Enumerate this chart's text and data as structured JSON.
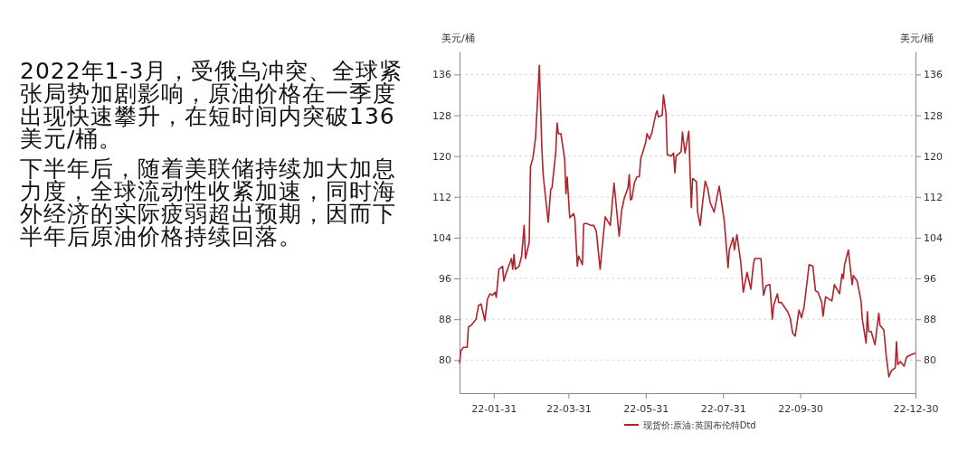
{
  "chart_data": {
    "type": "line",
    "annotations": [
      "2022年1-3月，受俄乌冲突、全球紧张局势加剧影响，原油价格在一季度出现快速攀升，在短时间内突破136美元/桶。",
      "下半年后，随着美联储持续加大加息力度，全球流动性收紧加速，同时海外经济的实际疲弱超出预期，因而下半年后原油价格持续回落。"
    ],
    "ylabel": "美元/桶",
    "y2label": "美元/桶",
    "xlim": [
      "2022-01-04",
      "2022-12-30"
    ],
    "xticks": [
      {
        "value": "2022-01-31",
        "label": "22-01-31"
      },
      {
        "value": "2022-03-31",
        "label": "22-03-31"
      },
      {
        "value": "2022-05-31",
        "label": "22-05-31"
      },
      {
        "value": "2022-07-31",
        "label": "22-07-31"
      },
      {
        "value": "2022-09-30",
        "label": "22-09-30"
      },
      {
        "value": "2022-12-30",
        "label": "22-12-30"
      }
    ],
    "ylim": [
      73.5,
      140.5
    ],
    "yticks": [
      80,
      88,
      96,
      104,
      112,
      120,
      128,
      136
    ],
    "y2lim": [
      73.5,
      140.5
    ],
    "y2ticks": [
      80,
      88,
      96,
      104,
      112,
      120,
      128,
      136
    ],
    "grid": "y",
    "legend": "bottom",
    "marker": "none",
    "line_style": "solid",
    "series": [
      {
        "name": "现货价:原油:英国布伦特Dtd",
        "color": "#b0232a",
        "x": [
          "2022-01-04",
          "2022-01-05",
          "2022-01-07",
          "2022-01-10",
          "2022-01-11",
          "2022-01-13",
          "2022-01-17",
          "2022-01-19",
          "2022-01-21",
          "2022-01-24",
          "2022-01-26",
          "2022-01-28",
          "2022-01-30",
          "2022-02-01",
          "2022-02-02",
          "2022-02-04",
          "2022-02-07",
          "2022-02-08",
          "2022-02-10",
          "2022-02-14",
          "2022-02-15",
          "2022-02-16",
          "2022-02-17",
          "2022-02-20",
          "2022-02-22",
          "2022-02-24",
          "2022-02-25",
          "2022-02-28",
          "2022-03-01",
          "2022-03-03",
          "2022-03-05",
          "2022-03-08",
          "2022-03-10",
          "2022-03-11",
          "2022-03-15",
          "2022-03-17",
          "2022-03-18",
          "2022-03-21",
          "2022-03-22",
          "2022-03-23",
          "2022-03-25",
          "2022-03-28",
          "2022-03-29",
          "2022-03-30",
          "2022-04-01",
          "2022-04-04",
          "2022-04-05",
          "2022-04-07",
          "2022-04-08",
          "2022-04-11",
          "2022-04-12",
          "2022-04-14",
          "2022-04-18",
          "2022-04-20",
          "2022-04-22",
          "2022-04-25",
          "2022-04-27",
          "2022-04-29",
          "2022-05-03",
          "2022-05-06",
          "2022-05-10",
          "2022-05-12",
          "2022-05-14",
          "2022-05-17",
          "2022-05-18",
          "2022-05-19",
          "2022-05-20",
          "2022-05-22",
          "2022-05-24",
          "2022-05-26",
          "2022-05-27",
          "2022-05-31",
          "2022-06-01",
          "2022-06-03",
          "2022-06-05",
          "2022-06-08",
          "2022-06-09",
          "2022-06-10",
          "2022-06-13",
          "2022-06-14",
          "2022-06-16",
          "2022-06-17",
          "2022-06-20",
          "2022-06-22",
          "2022-06-23",
          "2022-06-24",
          "2022-06-28",
          "2022-06-29",
          "2022-07-01",
          "2022-07-04",
          "2022-07-06",
          "2022-07-07",
          "2022-07-10",
          "2022-07-11",
          "2022-07-13",
          "2022-07-15",
          "2022-07-17",
          "2022-07-19",
          "2022-07-21",
          "2022-07-24",
          "2022-07-28",
          "2022-08-01",
          "2022-08-04",
          "2022-08-05",
          "2022-08-08",
          "2022-08-09",
          "2022-08-11",
          "2022-08-14",
          "2022-08-16",
          "2022-08-19",
          "2022-08-22",
          "2022-08-24",
          "2022-08-25",
          "2022-08-30",
          "2022-09-01",
          "2022-09-03",
          "2022-09-06",
          "2022-09-08",
          "2022-09-09",
          "2022-09-12",
          "2022-09-13",
          "2022-09-15",
          "2022-09-20",
          "2022-09-22",
          "2022-09-24",
          "2022-09-26",
          "2022-09-29",
          "2022-10-01",
          "2022-10-03",
          "2022-10-05",
          "2022-10-07",
          "2022-10-10",
          "2022-10-12",
          "2022-10-14",
          "2022-10-17",
          "2022-10-18",
          "2022-10-20",
          "2022-10-25",
          "2022-10-27",
          "2022-10-31",
          "2022-11-02",
          "2022-11-03",
          "2022-11-04",
          "2022-11-07",
          "2022-11-10",
          "2022-11-11",
          "2022-11-14",
          "2022-11-17",
          "2022-11-18",
          "2022-11-21",
          "2022-11-22",
          "2022-11-23",
          "2022-11-25",
          "2022-11-28",
          "2022-12-01",
          "2022-12-02",
          "2022-12-05",
          "2022-12-07",
          "2022-12-09",
          "2022-12-11",
          "2022-12-14",
          "2022-12-15",
          "2022-12-16",
          "2022-12-18",
          "2022-12-21",
          "2022-12-23",
          "2022-12-26",
          "2022-12-29",
          "2022-12-30"
        ],
        "values": [
          79.4,
          81.8,
          82.5,
          82.5,
          86.5,
          86.8,
          88.0,
          90.7,
          91.0,
          87.7,
          91.9,
          93.0,
          92.7,
          93.3,
          92.3,
          97.8,
          98.4,
          95.5,
          97.2,
          99.9,
          97.8,
          100.7,
          97.8,
          98.4,
          100.4,
          106.4,
          99.9,
          103.1,
          117.9,
          119.7,
          123.6,
          137.8,
          121.5,
          116.4,
          107.0,
          113.5,
          113.8,
          120.9,
          126.5,
          124.4,
          124.4,
          119.4,
          112.6,
          115.9,
          107.9,
          108.7,
          107.9,
          98.4,
          100.4,
          98.7,
          106.7,
          106.8,
          106.4,
          106.4,
          105.2,
          97.8,
          103.1,
          108.1,
          106.4,
          114.7,
          104.3,
          109.3,
          111.7,
          113.8,
          116.4,
          111.4,
          111.6,
          114.7,
          115.9,
          116.0,
          119.4,
          122.7,
          124.4,
          123.3,
          124.7,
          128.3,
          128.9,
          127.7,
          128.0,
          132.0,
          128.3,
          120.3,
          120.0,
          120.6,
          116.7,
          120.0,
          120.9,
          124.7,
          120.6,
          124.9,
          109.9,
          115.6,
          115.0,
          109.0,
          106.4,
          111.1,
          115.1,
          113.5,
          110.8,
          109.0,
          114.1,
          107.3,
          98.1,
          101.6,
          104.0,
          101.6,
          104.6,
          99.3,
          93.3,
          97.2,
          93.9,
          98.7,
          99.9,
          99.9,
          92.7,
          94.6,
          94.8,
          88.0,
          90.7,
          93.0,
          91.3,
          91.3,
          89.5,
          88.3,
          85.3,
          84.7,
          89.8,
          88.3,
          90.4,
          94.5,
          98.7,
          98.4,
          93.6,
          93.3,
          91.3,
          88.6,
          92.4,
          91.6,
          94.8,
          93.0,
          96.9,
          96.0,
          98.7,
          101.6,
          94.8,
          96.6,
          95.4,
          91.6,
          88.0,
          83.3,
          89.5,
          85.6,
          85.6,
          83.0,
          89.2,
          86.8,
          85.9,
          80.6,
          76.7,
          77.9,
          78.5,
          83.6,
          79.1,
          79.7,
          78.8,
          80.6,
          81.0,
          81.3,
          81.2
        ]
      }
    ]
  }
}
